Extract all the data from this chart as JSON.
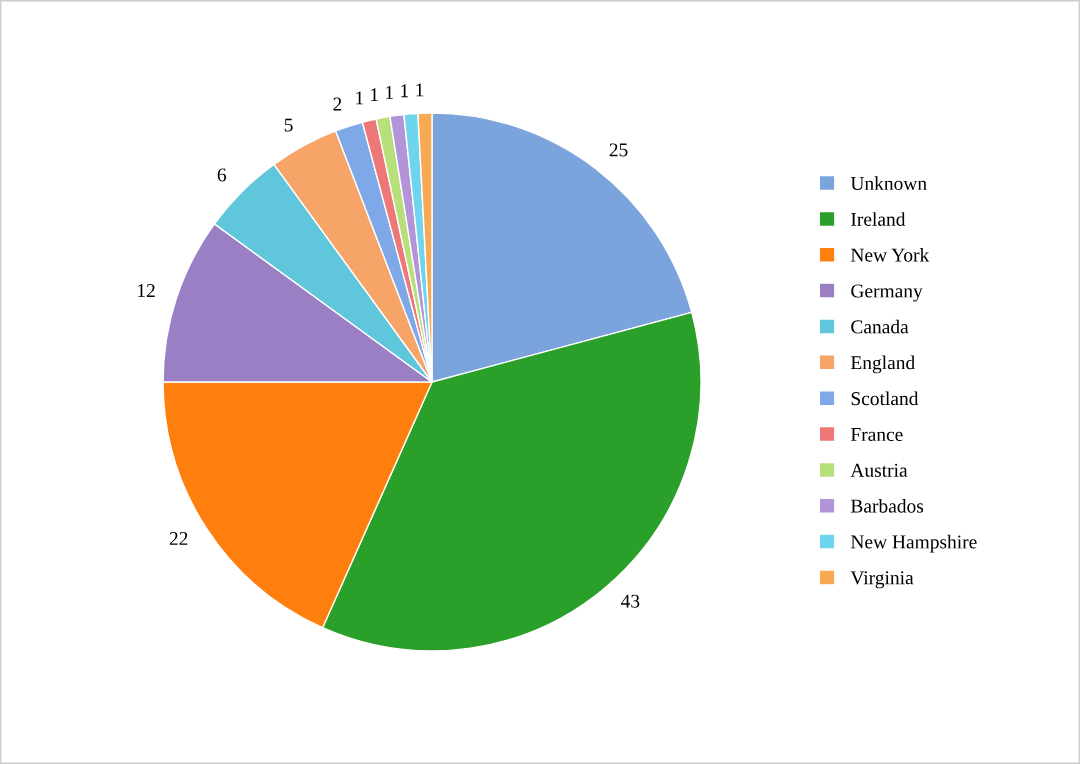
{
  "chart_data": {
    "type": "pie",
    "categories": [
      "Unknown",
      "Ireland",
      "New York",
      "Germany",
      "Canada",
      "England",
      "Scotland",
      "France",
      "Austria",
      "Barbados",
      "New Hampshire",
      "Virginia"
    ],
    "values": [
      25,
      43,
      22,
      12,
      6,
      5,
      2,
      1,
      1,
      1,
      1,
      1
    ],
    "colors": [
      "#7ba3dc",
      "#2aa02a",
      "#ff7f0e",
      "#9a7fc4",
      "#5fc6dc",
      "#f6a468",
      "#7fa8e8",
      "#ee7777",
      "#b8e07a",
      "#b294d8",
      "#6fd4ee",
      "#f7a954"
    ],
    "data_labels": true,
    "legend": "right"
  }
}
